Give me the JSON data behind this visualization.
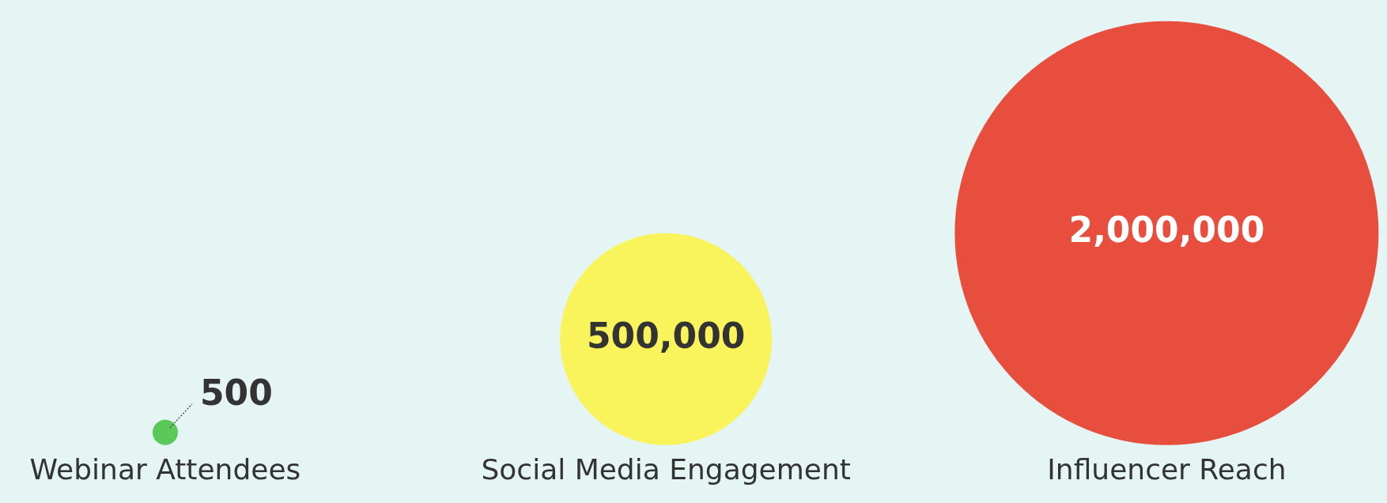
{
  "chart_data": {
    "type": "other",
    "categories": [
      "Webinar Attendees",
      "Social Media Engagement",
      "Influencer Reach"
    ],
    "values": [
      500,
      500000,
      2000000
    ],
    "value_labels": [
      "500",
      "500,000",
      "2,000,000"
    ],
    "colors": [
      "#5bc85a",
      "#f9f35c",
      "#e84e3e"
    ]
  }
}
